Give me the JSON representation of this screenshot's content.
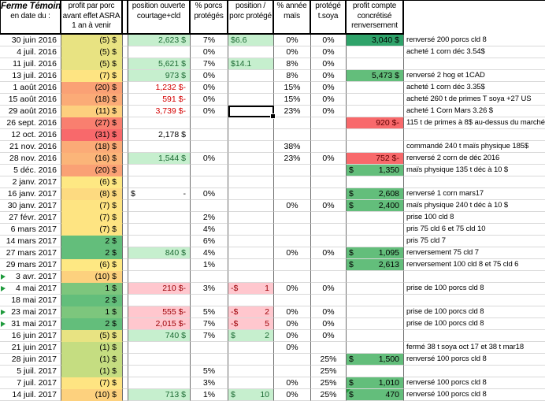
{
  "header": {
    "farm": {
      "l1": "Ferme Témoin",
      "l2": "en date du :"
    },
    "profit": {
      "l1": "profit par porc",
      "l2": "avant effet ASRA",
      "l3": "1 an à venir"
    },
    "position": {
      "l1": "position ouverte",
      "l2": "courtage+cld"
    },
    "pct_porcs": {
      "l1": "% porcs",
      "l2": "protégés"
    },
    "ppp": {
      "l1": "position /",
      "l2": "porc protégé"
    },
    "mais": {
      "l1": "% année",
      "l2": "maïs"
    },
    "soya": {
      "l1": "protégé",
      "l2": "t.soya"
    },
    "pc": {
      "l1": "profit  compte",
      "l2": "concrétisé",
      "l3": "renversement"
    }
  },
  "colors": {
    "good_fill": "#c6efce",
    "good_text": "#1d6b34",
    "bad_fill": "#ffc7ce",
    "bad_text": "#9c0006",
    "strong_green": "#63be7b",
    "dark_green": "#2fa36a",
    "strong_red": "#f8696b",
    "red_number": "#d40000",
    "scale_red": "#f8696b",
    "scale_yellow": "#ffeb84",
    "scale_green": "#63be7b",
    "flag_green": "#1f9a3c"
  },
  "rows": [
    {
      "date": "30 juin 2016",
      "profit": "(5) $",
      "pbg": "#e8e382",
      "pos": {
        "r": "2,623 $",
        "s": "g"
      },
      "pp": "7%",
      "ppp": {
        "l": "$6.6",
        "s": "g"
      },
      "mais": "0%",
      "soya": "0%",
      "pc": {
        "r": "3,040 $",
        "s": "dg"
      },
      "note": "renversé 200 porcs cld 8"
    },
    {
      "date": "4 juil. 2016",
      "profit": "(5) $",
      "pbg": "#e8e382",
      "pp": "0%",
      "mais": "0%",
      "soya": "0%",
      "note": "acheté 1 corn déc 3.54$"
    },
    {
      "date": "11 juil. 2016",
      "profit": "(5) $",
      "pbg": "#e8e382",
      "pos": {
        "r": "5,621 $",
        "s": "g"
      },
      "pp": "7%",
      "ppp": {
        "l": "$14.1",
        "s": "g"
      },
      "mais": "8%",
      "soya": "0%"
    },
    {
      "date": "13 juil. 2016",
      "profit": "(7) $",
      "pbg": "#fee482",
      "pos": {
        "r": "973 $",
        "s": "g"
      },
      "pp": "0%",
      "mais": "8%",
      "soya": "0%",
      "pc": {
        "r": "5,473 $",
        "s": "g2"
      },
      "note": "renversé 2 hog et 1CAD"
    },
    {
      "date": "1 août 2016",
      "profit": "(20) $",
      "pbg": "#faa175",
      "pos": {
        "r": "1,232 $-",
        "s": "rn"
      },
      "pp": "0%",
      "mais": "15%",
      "soya": "0%",
      "note": "acheté 1 corn déc 3.35$"
    },
    {
      "date": "15 août 2016",
      "profit": "(18) $",
      "pbg": "#fbab77",
      "pos": {
        "r": "591 $-",
        "s": "rn"
      },
      "pp": "0%",
      "mais": "15%",
      "soya": "0%",
      "note": "acheté 260 t de primes T soya +27 US"
    },
    {
      "date": "29 août 2016",
      "profit": "(11) $",
      "pbg": "#fdcf7e",
      "pos": {
        "r": "3,739 $-",
        "s": "rn"
      },
      "pp": "0%",
      "ppp": {
        "s": "sel"
      },
      "mais": "23%",
      "soya": "0%",
      "note": "acheté 1 Corn Mars 3.26 $"
    },
    {
      "date": "26 sept. 2016",
      "profit": "(27) $",
      "pbg": "#f97f6f",
      "pc": {
        "r": "920 $-",
        "s": "r"
      },
      "note": "115 t de primes à 8$ au-dessus du marché"
    },
    {
      "date": "12 oct. 2016",
      "profit": "(31) $",
      "pbg": "#f8696b",
      "pos": {
        "r": "2,178 $",
        "s": "p"
      }
    },
    {
      "date": "21 nov. 2016",
      "profit": "(18) $",
      "pbg": "#fbab77",
      "mais": "38%",
      "note": "commandé 240 t maïs physique 185$"
    },
    {
      "date": "28 nov. 2016",
      "profit": "(16) $",
      "pbg": "#fbb579",
      "pos": {
        "r": "1,544 $",
        "s": "g"
      },
      "pp": "0%",
      "mais": "23%",
      "soya": "0%",
      "pc": {
        "r": "752 $-",
        "s": "r"
      },
      "note": "renversé 2 corn de déc 2016"
    },
    {
      "date": "5 déc. 2016",
      "profit": "(20) $",
      "pbg": "#faa175",
      "pc": {
        "l": "$",
        "r": "1,350",
        "s": "g2"
      },
      "note": "maïs physique 135 t déc à 10 $"
    },
    {
      "date": "2 janv. 2017",
      "profit": "(6) $",
      "pbg": "#fee883"
    },
    {
      "date": "16 janv. 2017",
      "profit": "(8) $",
      "pbg": "#fdda80",
      "pos": {
        "l": "$",
        "r": "-",
        "s": "p"
      },
      "pp": "0%",
      "pc": {
        "l": "$",
        "r": "2,608",
        "s": "g2"
      },
      "note": "renversé 1 corn mars17"
    },
    {
      "date": "30 janv. 2017",
      "profit": "(7) $",
      "pbg": "#fee482",
      "mais": "0%",
      "soya": "0%",
      "pc": {
        "l": "$",
        "r": "2,400",
        "s": "g2"
      },
      "note": "maïs physique 240 t déc à 10 $"
    },
    {
      "date": "27 févr. 2017",
      "profit": "(7) $",
      "pbg": "#fee482",
      "pp": "2%",
      "note": "prise 100 cld 8"
    },
    {
      "date": "6 mars 2017",
      "profit": "(7) $",
      "pbg": "#fee482",
      "pp": "4%",
      "note": "pris 75 cld 6 et 75 cld 10"
    },
    {
      "date": "14 mars 2017",
      "profit": "2 $",
      "pbg": "#63be7b",
      "pp": "6%",
      "note": "pris 75 cld 7"
    },
    {
      "date": "27 mars 2017",
      "profit": "2 $",
      "pbg": "#63be7b",
      "pos": {
        "r": "840 $",
        "s": "g"
      },
      "pp": "4%",
      "mais": "0%",
      "soya": "0%",
      "pc": {
        "l": "$",
        "r": "1,095",
        "s": "g2"
      },
      "note": "renversement 75 cld 7"
    },
    {
      "date": "29 mars 2017",
      "profit": "(6) $",
      "pbg": "#fee883",
      "pp": "1%",
      "pc": {
        "l": "$",
        "r": "2,613",
        "s": "g2"
      },
      "note": "renversement 100 cld 8 et 75 cld 6"
    },
    {
      "date": "3 avr. 2017",
      "profit": "(10) $",
      "pbg": "#fdd17e",
      "marker": true
    },
    {
      "date": "4 mai 2017",
      "profit": "1 $",
      "pbg": "#7dc67d",
      "marker": true,
      "pos": {
        "r": "210 $-",
        "s": "pk"
      },
      "pp": "3%",
      "ppp": {
        "l": "-$",
        "r": "1",
        "s": "pk"
      },
      "mais": "0%",
      "soya": "0%",
      "note": "prise de 100 porcs cld 8"
    },
    {
      "date": "18 mai 2017",
      "profit": "2 $",
      "pbg": "#63be7b"
    },
    {
      "date": "23 mai 2017",
      "profit": "1 $",
      "pbg": "#7dc67d",
      "marker": true,
      "pos": {
        "r": "555 $-",
        "s": "pk"
      },
      "pp": "5%",
      "ppp": {
        "l": "-$",
        "r": "2",
        "s": "pk"
      },
      "mais": "0%",
      "soya": "0%",
      "note": "prise de 100 porcs cld 8"
    },
    {
      "date": "31 mai 2017",
      "profit": "2 $",
      "pbg": "#63be7b",
      "marker": true,
      "pos": {
        "r": "2,015 $-",
        "s": "pk"
      },
      "pp": "7%",
      "ppp": {
        "l": "-$",
        "r": "5",
        "s": "pk"
      },
      "mais": "0%",
      "soya": "0%",
      "note": "prise de 100 porcs cld 8"
    },
    {
      "date": "16 juin 2017",
      "profit": "(5) $",
      "pbg": "#e8e382",
      "pos": {
        "r": "740 $",
        "s": "g"
      },
      "pp": "7%",
      "ppp": {
        "l": "$",
        "r": "2",
        "s": "g"
      },
      "mais": "0%",
      "soya": "0%"
    },
    {
      "date": "21 juin 2017",
      "profit": "(1) $",
      "pbg": "#c5dd81",
      "mais": "0%",
      "note": "fermé 38 t soya oct 17 et 38 t mar18"
    },
    {
      "date": "28 juin 2017",
      "profit": "(1) $",
      "pbg": "#c5dd81",
      "soya": "25%",
      "pc": {
        "l": "$",
        "r": "1,500",
        "s": "g2"
      },
      "note": "renversé 100 porcs cld 8"
    },
    {
      "date": "5 juil. 2017",
      "profit": "(1) $",
      "pbg": "#c5dd81",
      "pp": "5%",
      "soya": "25%"
    },
    {
      "date": "7 juil. 2017",
      "profit": "(7) $",
      "pbg": "#fee482",
      "pp": "3%",
      "mais": "0%",
      "soya": "25%",
      "pc": {
        "l": "$",
        "r": "1,010",
        "s": "g2"
      },
      "note": "renversé 100 porcs cld 8"
    },
    {
      "date": "14 juil. 2017",
      "profit": "(10) $",
      "pbg": "#fdd17e",
      "pos": {
        "r": "713 $",
        "s": "g"
      },
      "pp": "1%",
      "ppp": {
        "l": "$",
        "r": "10",
        "s": "g"
      },
      "mais": "0%",
      "soya": "25%",
      "pc": {
        "l": "$",
        "r": "470",
        "s": "g2",
        "tri": true
      },
      "note": "renversé 100 porcs cld 8"
    }
  ]
}
